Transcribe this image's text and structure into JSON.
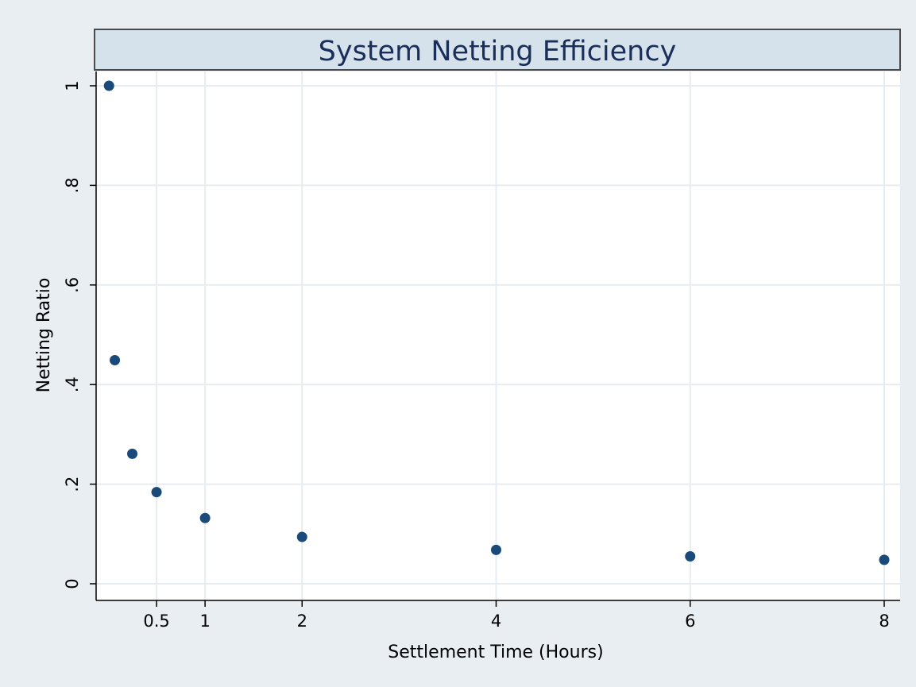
{
  "chart_data": {
    "type": "scatter",
    "title": "System Netting Efficiency",
    "xlabel": "Settlement Time (Hours)",
    "ylabel": "Netting Ratio",
    "xlim": [
      0,
      8
    ],
    "ylim": [
      0,
      1
    ],
    "x_ticks": [
      {
        "value": 0.5,
        "label": "0.5"
      },
      {
        "value": 1,
        "label": "1"
      },
      {
        "value": 2,
        "label": "2"
      },
      {
        "value": 4,
        "label": "4"
      },
      {
        "value": 6,
        "label": "6"
      },
      {
        "value": 8,
        "label": "8"
      }
    ],
    "y_ticks": [
      {
        "value": 0,
        "label": "0"
      },
      {
        "value": 0.2,
        "label": ".2"
      },
      {
        "value": 0.4,
        "label": ".4"
      },
      {
        "value": 0.6,
        "label": ".6"
      },
      {
        "value": 0.8,
        "label": ".8"
      },
      {
        "value": 1,
        "label": "1"
      }
    ],
    "grid": true,
    "series": [
      {
        "x": [
          0.01,
          0.07,
          0.25,
          0.5,
          1,
          2,
          4,
          6,
          8
        ],
        "y": [
          1.0,
          0.449,
          0.261,
          0.184,
          0.132,
          0.094,
          0.068,
          0.055,
          0.048
        ]
      }
    ],
    "colors": {
      "background": "#e8eef2",
      "plot_area": "#ffffff",
      "grid": "#e6ecf0",
      "marker": "#1a4a7a",
      "title_fill": "#d5e2ec",
      "title_text": "#1a2e5a",
      "axis": "#000000"
    }
  }
}
